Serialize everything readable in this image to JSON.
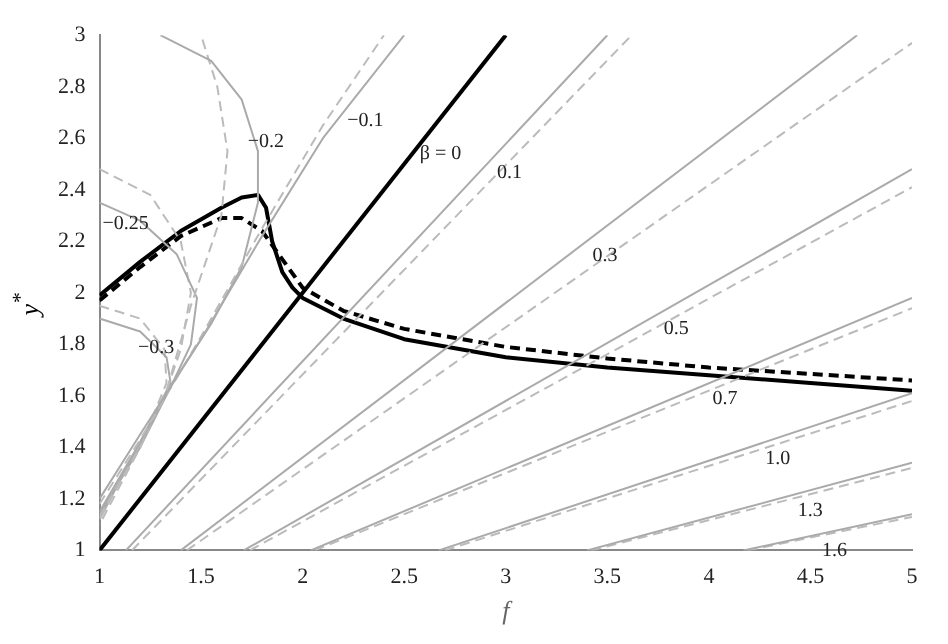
{
  "chart_data": {
    "type": "line",
    "xlabel": "f",
    "ylabel": "y$^{*}$",
    "xlim": [
      1,
      5
    ],
    "ylim": [
      1,
      3
    ],
    "xticks": [
      1,
      1.5,
      2,
      2.5,
      3,
      3.5,
      4,
      4.5,
      5
    ],
    "yticks": [
      1,
      1.2,
      1.4,
      1.6,
      1.8,
      2,
      2.2,
      2.4,
      2.6,
      2.8,
      3
    ],
    "grid": false,
    "legend": false,
    "marker": "none",
    "series": [
      {
        "color": "#aaaaaa",
        "line_style": "solid",
        "x": [
          1.13,
          3.5
        ],
        "values": [
          1,
          3
        ]
      },
      {
        "color": "#bbbbbb",
        "line_style": "dashed",
        "x": [
          1.16,
          3.62
        ],
        "values": [
          1,
          3
        ]
      },
      {
        "color": "#aaaaaa",
        "line_style": "solid",
        "x": [
          1.4,
          4.73
        ],
        "values": [
          1,
          3
        ]
      },
      {
        "color": "#bbbbbb",
        "line_style": "dashed",
        "x": [
          1.43,
          5
        ],
        "values": [
          1,
          2.97
        ]
      },
      {
        "color": "#aaaaaa",
        "line_style": "solid",
        "x": [
          1.71,
          5
        ],
        "values": [
          1,
          2.48
        ]
      },
      {
        "color": "#bbbbbb",
        "line_style": "dashed",
        "x": [
          1.74,
          5
        ],
        "values": [
          1,
          2.41
        ]
      },
      {
        "color": "#aaaaaa",
        "line_style": "solid",
        "x": [
          2.04,
          5
        ],
        "values": [
          1,
          1.98
        ]
      },
      {
        "color": "#bbbbbb",
        "line_style": "dashed",
        "x": [
          2.06,
          5
        ],
        "values": [
          1,
          1.94
        ]
      },
      {
        "color": "#aaaaaa",
        "line_style": "solid",
        "x": [
          2.67,
          5
        ],
        "values": [
          1,
          1.61
        ]
      },
      {
        "color": "#bbbbbb",
        "line_style": "dashed",
        "x": [
          2.7,
          5
        ],
        "values": [
          1,
          1.58
        ]
      },
      {
        "color": "#aaaaaa",
        "line_style": "solid",
        "x": [
          3.4,
          5
        ],
        "values": [
          1,
          1.34
        ]
      },
      {
        "color": "#bbbbbb",
        "line_style": "dashed",
        "x": [
          3.42,
          5
        ],
        "values": [
          1,
          1.32
        ]
      },
      {
        "color": "#aaaaaa",
        "line_style": "solid",
        "x": [
          4.17,
          5
        ],
        "values": [
          1,
          1.14
        ]
      },
      {
        "color": "#bbbbbb",
        "line_style": "dashed",
        "x": [
          4.19,
          5
        ],
        "values": [
          1,
          1.13
        ]
      },
      {
        "color": "#aaaaaa",
        "line_style": "solid",
        "x": [
          1,
          1.2,
          1.5,
          1.8,
          2.1,
          2.5
        ],
        "values": [
          1.2,
          1.45,
          1.82,
          2.22,
          2.6,
          3
        ]
      },
      {
        "color": "#bbbbbb",
        "line_style": "dashed",
        "x": [
          1,
          1.2,
          1.5,
          1.8,
          2.1,
          2.4
        ],
        "values": [
          1.18,
          1.43,
          1.83,
          2.25,
          2.65,
          3
        ]
      },
      {
        "color": "#aaaaaa",
        "line_style": "solid",
        "x": [
          1,
          1.2,
          1.36,
          1.55,
          1.7,
          1.78,
          1.78,
          1.7,
          1.55,
          1.3
        ],
        "values": [
          1.15,
          1.42,
          1.65,
          1.88,
          2.1,
          2.35,
          2.55,
          2.75,
          2.9,
          3
        ]
      },
      {
        "color": "#bbbbbb",
        "line_style": "dashed",
        "x": [
          1,
          1.2,
          1.33,
          1.45,
          1.6,
          1.63,
          1.58,
          1.5
        ],
        "values": [
          1.13,
          1.4,
          1.62,
          1.95,
          2.3,
          2.55,
          2.8,
          3
        ]
      },
      {
        "color": "#aaaaaa",
        "line_style": "solid",
        "x": [
          1,
          1.2,
          1.38,
          1.48,
          1.45,
          1.36,
          1.2,
          1
        ],
        "values": [
          2.35,
          2.28,
          2.15,
          1.98,
          1.8,
          1.65,
          1.4,
          1.14
        ]
      },
      {
        "color": "#bbbbbb",
        "line_style": "dashed",
        "x": [
          1,
          1.25,
          1.4,
          1.45,
          1.4,
          1.33,
          1.2,
          1
        ],
        "values": [
          2.48,
          2.38,
          2.2,
          2,
          1.78,
          1.62,
          1.41,
          1.12
        ]
      },
      {
        "color": "#aaaaaa",
        "line_style": "solid",
        "x": [
          1,
          1.2,
          1.33,
          1.35,
          1.2,
          1
        ],
        "values": [
          1.9,
          1.85,
          1.75,
          1.65,
          1.42,
          1.12
        ]
      },
      {
        "color": "#bbbbbb",
        "line_style": "dashed",
        "x": [
          1,
          1.2,
          1.32,
          1.33,
          1.2,
          1
        ],
        "values": [
          1.95,
          1.9,
          1.78,
          1.65,
          1.4,
          1.1
        ]
      },
      {
        "color": "#000000",
        "line_style": "solid",
        "x": [
          1,
          3
        ],
        "values": [
          1,
          3
        ]
      },
      {
        "color": "#000000",
        "line_style": "solid",
        "x": [
          1,
          1.2,
          1.4,
          1.6,
          1.7,
          1.78,
          1.82,
          1.85,
          1.9,
          1.95,
          2,
          2.2,
          2.5,
          3,
          3.5,
          4,
          4.5,
          5
        ],
        "values": [
          1.99,
          2.12,
          2.24,
          2.33,
          2.37,
          2.38,
          2.33,
          2.2,
          2.08,
          2.02,
          1.98,
          1.9,
          1.82,
          1.75,
          1.71,
          1.68,
          1.65,
          1.62
        ]
      },
      {
        "color": "#000000",
        "line_style": "dashed",
        "x": [
          1,
          1.2,
          1.4,
          1.6,
          1.7,
          1.8,
          1.9,
          2,
          2.2,
          2.5,
          3,
          3.5,
          4,
          4.5,
          5
        ],
        "values": [
          1.97,
          2.1,
          2.22,
          2.29,
          2.29,
          2.24,
          2.13,
          2.02,
          1.93,
          1.86,
          1.79,
          1.745,
          1.71,
          1.685,
          1.66
        ]
      }
    ],
    "annotations": [
      {
        "text": "β = 0",
        "x": 2.6,
        "y": 2.6
      },
      {
        "text": "−0.1",
        "x": 2.23,
        "y": 2.73
      },
      {
        "text": "−0.2",
        "x": 1.74,
        "y": 2.65
      },
      {
        "text": "−0.25",
        "x": 1.05,
        "y": 2.33
      },
      {
        "text": "−0.3",
        "x": 1.2,
        "y": 1.85
      },
      {
        "text": "0.1",
        "x": 2.94,
        "y": 2.53
      },
      {
        "text": "0.3",
        "x": 3.41,
        "y": 2.207
      },
      {
        "text": "0.5",
        "x": 3.76,
        "y": 1.922
      },
      {
        "text": "0.7",
        "x": 4,
        "y": 1.649
      },
      {
        "text": "1.0",
        "x": 4.26,
        "y": 1.416
      },
      {
        "text": "1.3",
        "x": 4.42,
        "y": 1.217
      },
      {
        "text": "1.6",
        "x": 4.54,
        "y": 1.062
      }
    ]
  }
}
